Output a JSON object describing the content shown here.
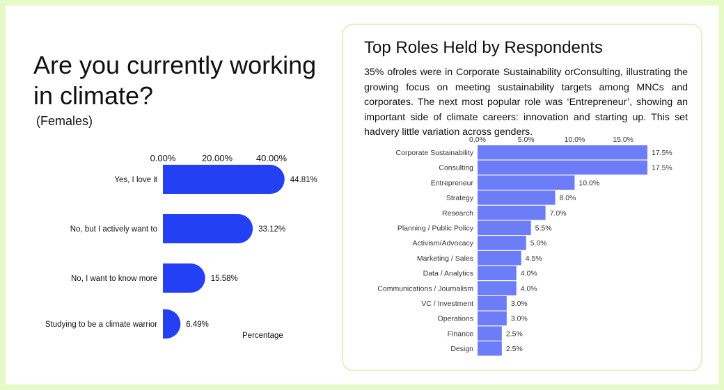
{
  "left": {
    "title": "Are you currently working in climate?",
    "subtitle": "(Females)"
  },
  "right": {
    "title": "Top Roles Held by Respondents",
    "description": "35% ofroles were in Corporate Sustainability orConsulting, illustrating the growing focus on meeting sustainability targets among MNCs and corporates. The next most popular role was ‘Entrepreneur’, showing an important side of climate careers: innovation and starting up. This set hadvery little variation across genders."
  },
  "chart_data": [
    {
      "type": "bar",
      "orientation": "horizontal",
      "categories": [
        "Yes, I love it",
        "No, but I actively want to",
        "No, I want to know more",
        "Studying to be a climate warrior"
      ],
      "values": [
        44.81,
        33.12,
        15.58,
        6.49
      ],
      "data_labels": [
        "44.81%",
        "33.12%",
        "15.58%",
        "6.49%"
      ],
      "x_ticks": [
        "0.00%",
        "20.00%",
        "40.00%"
      ],
      "xlabel": "Percentage",
      "color": "#2340f5"
    },
    {
      "type": "bar",
      "orientation": "horizontal",
      "categories": [
        "Corporate Sustainability",
        "Consulting",
        "Entrepreneur",
        "Strategy",
        "Research",
        "Planning / Public Policy",
        "Activism/Advocacy",
        "Marketing / Sales",
        "Data / Analytics",
        "Communications / Journalism",
        "VC / Investment",
        "Operations",
        "Finance",
        "Design"
      ],
      "values": [
        17.5,
        17.5,
        10.0,
        8.0,
        7.0,
        5.5,
        5.0,
        4.5,
        4.0,
        4.0,
        3.0,
        3.0,
        2.5,
        2.5
      ],
      "data_labels": [
        "17.5%",
        "17.5%",
        "10.0%",
        "8.0%",
        "7.0%",
        "5.5%",
        "5.0%",
        "4.5%",
        "4.0%",
        "4.0%",
        "3.0%",
        "3.0%",
        "2.5%",
        "2.5%"
      ],
      "x_ticks": [
        "0.0%",
        "5.0%",
        "10.0%",
        "15.0%"
      ],
      "color": "#6d7cf7"
    }
  ]
}
